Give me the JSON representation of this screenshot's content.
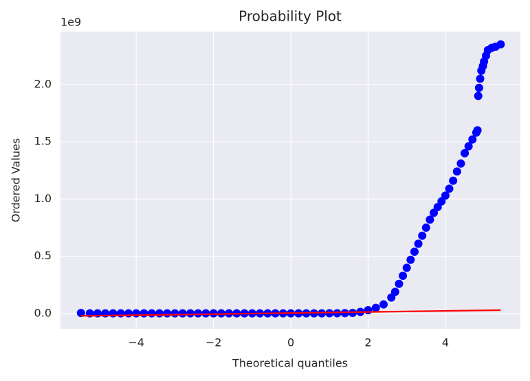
{
  "chart_data": {
    "type": "scatter",
    "title": "Probability Plot",
    "x_label": "Theoretical quantiles",
    "y_label": "Ordered Values",
    "y_offset_label": "1e9",
    "xlim": [
      -5.96,
      5.94
    ],
    "ylim": [
      -0.132,
      2.461
    ],
    "xticks": [
      {
        "value": -4,
        "label": "−4"
      },
      {
        "value": -2,
        "label": "−2"
      },
      0,
      2,
      4
    ],
    "yticks": [
      {
        "value": 0,
        "label": "0.0"
      },
      {
        "value": 0.5,
        "label": "0.5"
      },
      {
        "value": 1,
        "label": "1.0"
      },
      {
        "value": 1.5,
        "label": "1.5"
      },
      {
        "value": 2,
        "label": "2.0"
      }
    ],
    "grid": true,
    "points": {
      "color": "#0000ff",
      "x": [
        -5.43,
        -5.2,
        -5.0,
        -4.8,
        -4.6,
        -4.4,
        -4.2,
        -4.0,
        -3.8,
        -3.6,
        -3.4,
        -3.2,
        -3.0,
        -2.8,
        -2.6,
        -2.4,
        -2.2,
        -2.0,
        -1.8,
        -1.6,
        -1.4,
        -1.2,
        -1.0,
        -0.8,
        -0.6,
        -0.4,
        -0.2,
        0,
        0.2,
        0.4,
        0.6,
        0.8,
        1.0,
        1.2,
        1.4,
        1.6,
        1.8,
        2.0,
        2.2,
        2.4,
        2.6,
        2.7,
        2.8,
        2.9,
        3.0,
        3.1,
        3.2,
        3.3,
        3.4,
        3.5,
        3.6,
        3.7,
        3.8,
        3.9,
        4.0,
        4.1,
        4.2,
        4.3,
        4.4,
        4.5,
        4.6,
        4.7,
        4.8,
        4.83,
        4.85,
        4.87,
        4.9,
        4.93,
        4.97,
        5.0,
        5.05,
        5.1,
        5.2,
        5.3,
        5.43
      ],
      "y": [
        0.005,
        0.002,
        0.002,
        0.002,
        0.002,
        0.002,
        0.002,
        0.002,
        0.002,
        0.002,
        0.002,
        0.002,
        0.002,
        0.002,
        0.002,
        0.002,
        0.002,
        0.002,
        0.002,
        0.002,
        0.002,
        0.002,
        0.002,
        0.002,
        0.002,
        0.002,
        0.002,
        0.002,
        0.002,
        0.002,
        0.002,
        0.002,
        0.003,
        0.003,
        0.004,
        0.006,
        0.015,
        0.03,
        0.05,
        0.08,
        0.14,
        0.19,
        0.26,
        0.33,
        0.4,
        0.47,
        0.54,
        0.61,
        0.68,
        0.75,
        0.82,
        0.88,
        0.93,
        0.98,
        1.03,
        1.09,
        1.16,
        1.24,
        1.31,
        1.4,
        1.46,
        1.52,
        1.58,
        1.6,
        1.9,
        1.97,
        2.05,
        2.12,
        2.16,
        2.2,
        2.25,
        2.3,
        2.32,
        2.33,
        2.35
      ]
    },
    "fit_line": {
      "color": "#ff0000",
      "x": [
        -5.43,
        5.43
      ],
      "y": [
        -0.02,
        0.03
      ]
    }
  }
}
